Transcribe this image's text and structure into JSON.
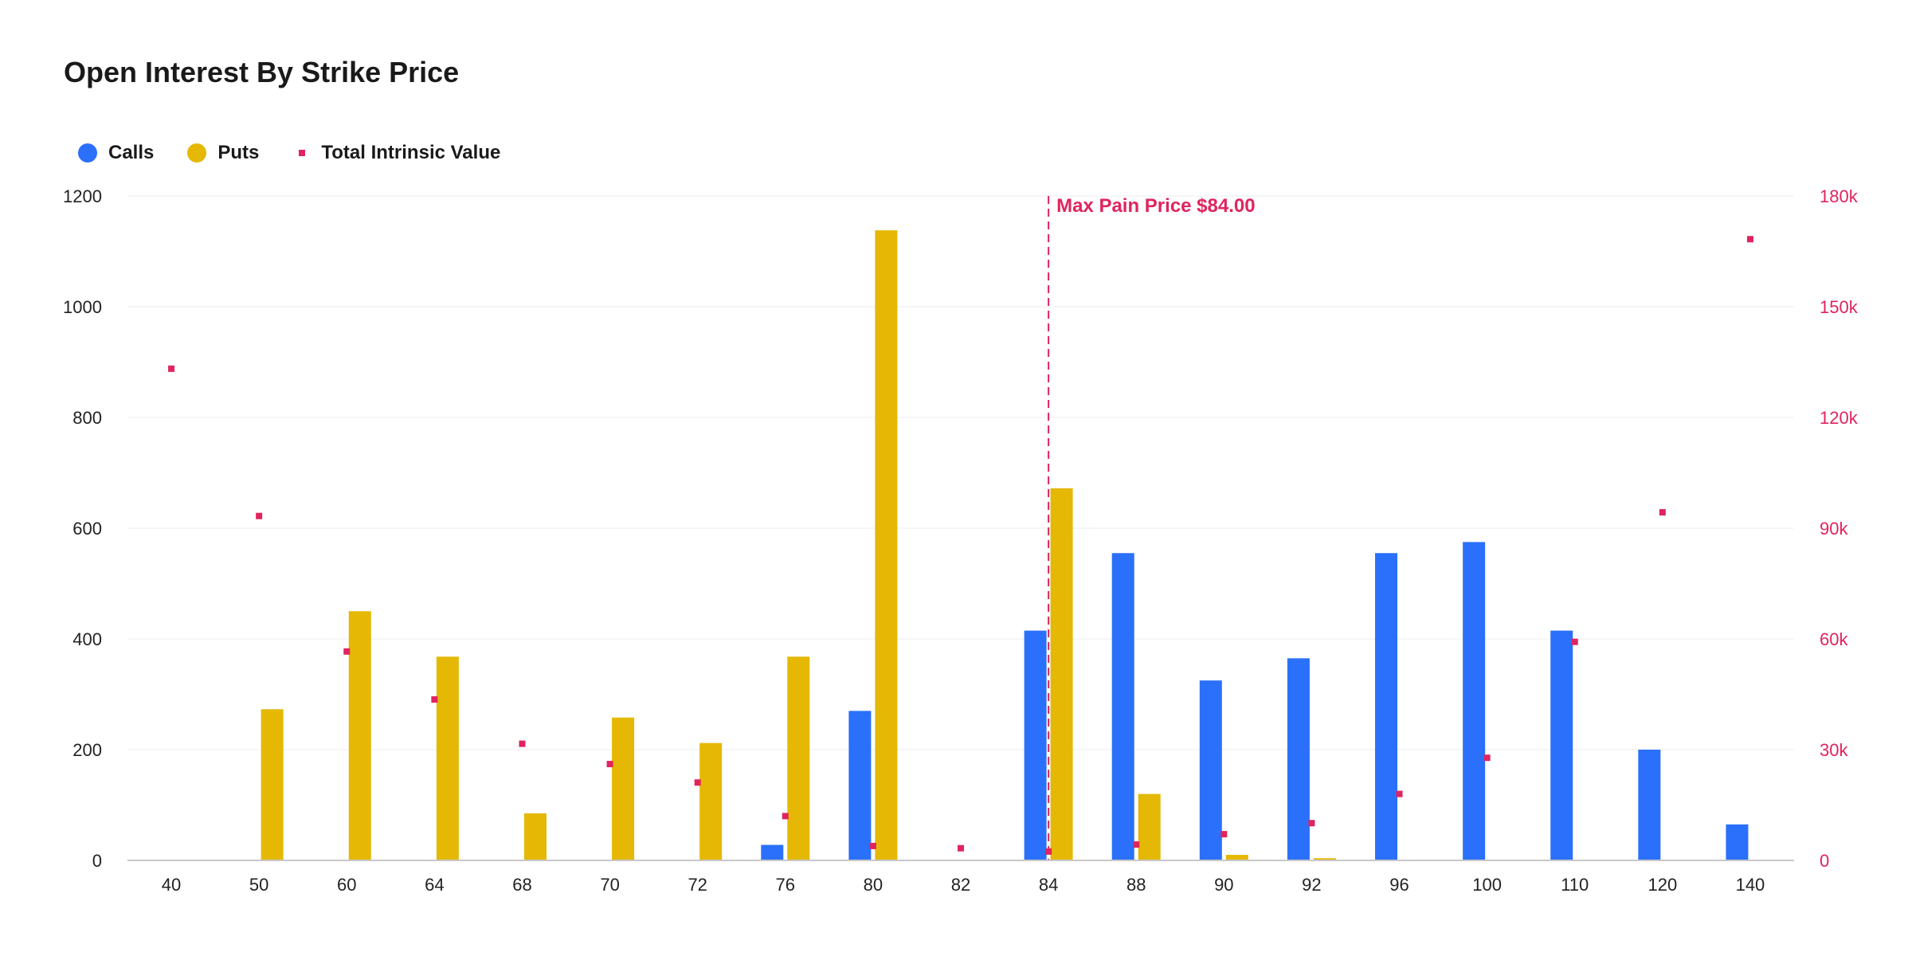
{
  "colors": {
    "calls": "#2a70fb",
    "puts": "#e4b804",
    "intrinsic": "#e0245e",
    "grid": "#ececec",
    "axis": "#c8c8c8"
  },
  "legend": {
    "calls": "Calls",
    "puts": "Puts",
    "intrinsic": "Total Intrinsic Value"
  },
  "chart_data": {
    "type": "bar",
    "title": "Open Interest By Strike Price",
    "categories": [
      "40",
      "50",
      "60",
      "64",
      "68",
      "70",
      "72",
      "76",
      "80",
      "82",
      "84",
      "88",
      "90",
      "92",
      "96",
      "100",
      "110",
      "120",
      "140"
    ],
    "series": [
      {
        "name": "Calls",
        "type": "bar",
        "axis": "left",
        "values": [
          0,
          0,
          0,
          0,
          0,
          0,
          0,
          28,
          270,
          0,
          415,
          555,
          325,
          365,
          555,
          575,
          415,
          200,
          65
        ]
      },
      {
        "name": "Puts",
        "type": "bar",
        "axis": "left",
        "values": [
          0,
          273,
          450,
          368,
          85,
          258,
          212,
          368,
          1138,
          0,
          672,
          120,
          10,
          4,
          0,
          0,
          0,
          0,
          0
        ]
      },
      {
        "name": "Total Intrinsic Value",
        "type": "scatter",
        "axis": "right",
        "values": [
          133200,
          93300,
          56600,
          43600,
          31600,
          26100,
          21100,
          12000,
          3900,
          3300,
          2400,
          4300,
          7100,
          10100,
          18000,
          27800,
          59200,
          94300,
          168300
        ]
      }
    ],
    "y_left": {
      "ylim": [
        0,
        1200
      ],
      "ticks": [
        "0",
        "200",
        "400",
        "600",
        "800",
        "1000",
        "1200"
      ]
    },
    "y_right": {
      "ylim": [
        0,
        180000
      ],
      "ticks": [
        "0",
        "30k",
        "60k",
        "90k",
        "120k",
        "150k",
        "180k"
      ]
    },
    "grid": true,
    "legend_position": "top-left",
    "annotation": {
      "label": "Max Pain Price $84.00",
      "category": "84"
    }
  }
}
